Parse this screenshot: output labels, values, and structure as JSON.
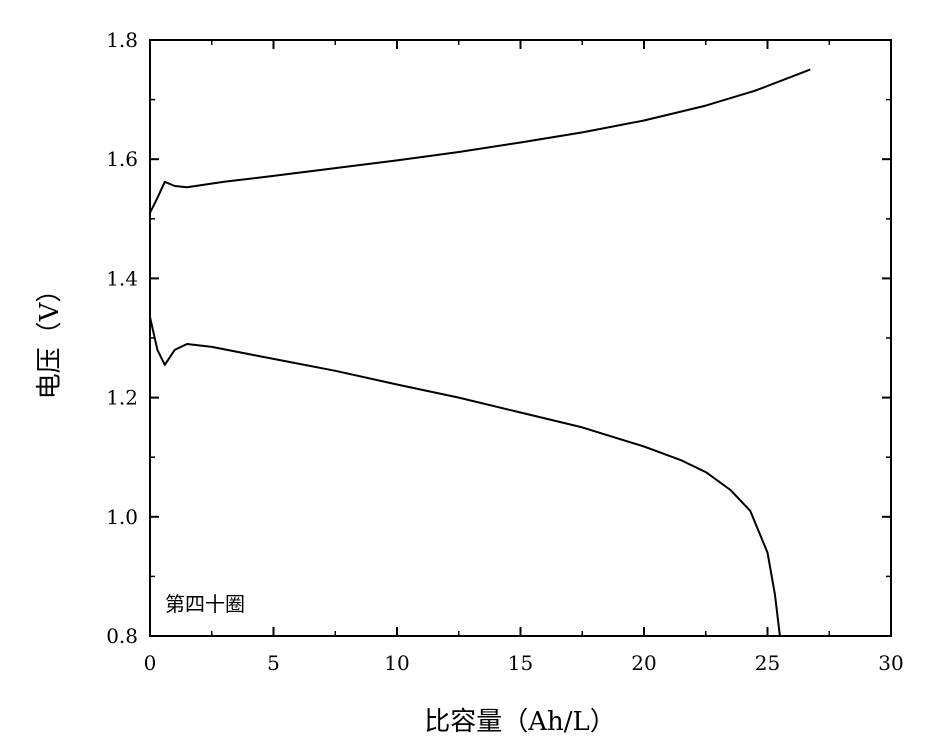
{
  "chart_data": {
    "type": "line",
    "title": "",
    "xlabel": "比容量（Ah/L）",
    "ylabel": "电压（V）",
    "xlim": [
      0,
      30
    ],
    "ylim": [
      0.8,
      1.8
    ],
    "x_ticks": [
      "0",
      "5",
      "10",
      "15",
      "20",
      "25",
      "30"
    ],
    "y_ticks": [
      "0.8",
      "1.0",
      "1.2",
      "1.4",
      "1.6",
      "1.8"
    ],
    "grid": false,
    "legend": "none",
    "annotation": "第四十圈",
    "line_color": "#000000",
    "series": [
      {
        "points": [
          [
            0,
            1.51
          ],
          [
            0.3,
            1.535
          ],
          [
            0.6,
            1.562
          ],
          [
            1.0,
            1.555
          ],
          [
            1.5,
            1.553
          ],
          [
            3,
            1.562
          ],
          [
            5,
            1.572
          ],
          [
            7.5,
            1.585
          ],
          [
            10,
            1.598
          ],
          [
            12.5,
            1.612
          ],
          [
            15,
            1.628
          ],
          [
            17.5,
            1.645
          ],
          [
            20,
            1.665
          ],
          [
            22.5,
            1.69
          ],
          [
            24.5,
            1.715
          ],
          [
            26.7,
            1.75
          ]
        ]
      },
      {
        "points": [
          [
            0,
            1.335
          ],
          [
            0.3,
            1.28
          ],
          [
            0.6,
            1.255
          ],
          [
            1.0,
            1.28
          ],
          [
            1.5,
            1.29
          ],
          [
            2.5,
            1.285
          ],
          [
            5,
            1.265
          ],
          [
            7.5,
            1.245
          ],
          [
            10,
            1.222
          ],
          [
            12.5,
            1.2
          ],
          [
            15,
            1.175
          ],
          [
            17.5,
            1.15
          ],
          [
            20,
            1.118
          ],
          [
            21.5,
            1.095
          ],
          [
            22.5,
            1.075
          ],
          [
            23.5,
            1.045
          ],
          [
            24.3,
            1.01
          ],
          [
            25,
            0.94
          ],
          [
            25.3,
            0.87
          ],
          [
            25.5,
            0.8
          ]
        ]
      }
    ]
  }
}
